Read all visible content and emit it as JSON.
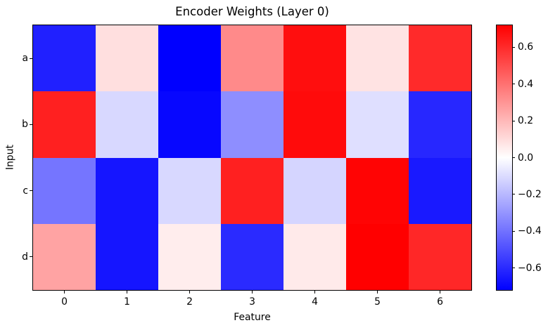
{
  "chart_data": {
    "type": "heatmap",
    "title": "Encoder Weights (Layer 0)",
    "xlabel": "Feature",
    "ylabel": "Input",
    "x_tick_labels": [
      "0",
      "1",
      "2",
      "3",
      "4",
      "5",
      "6"
    ],
    "y_tick_labels": [
      "a",
      "b",
      "c",
      "d"
    ],
    "colormap": "bwr",
    "vmin": -0.72,
    "vmax": 0.72,
    "series": [
      {
        "name": "a",
        "values": [
          -0.63,
          0.09,
          -0.72,
          0.33,
          0.68,
          0.08,
          0.6
        ]
      },
      {
        "name": "b",
        "values": [
          0.63,
          -0.11,
          -0.7,
          -0.32,
          0.69,
          -0.09,
          -0.61
        ]
      },
      {
        "name": "c",
        "values": [
          -0.39,
          -0.66,
          -0.11,
          0.63,
          -0.12,
          0.71,
          -0.65
        ]
      },
      {
        "name": "d",
        "values": [
          0.26,
          -0.66,
          0.05,
          -0.6,
          0.06,
          0.72,
          0.61
        ]
      }
    ],
    "colorbar": {
      "tick_labels": [
        "0.6",
        "0.4",
        "0.2",
        "0.0",
        "−0.2",
        "−0.4",
        "−0.6"
      ],
      "tick_values": [
        0.6,
        0.4,
        0.2,
        0.0,
        -0.2,
        -0.4,
        -0.6
      ],
      "top_color": "#ff0000",
      "mid_color": "#ffffff",
      "bottom_color": "#0000ff"
    },
    "colors": {
      "axis": "#000000",
      "background": "#ffffff"
    }
  }
}
